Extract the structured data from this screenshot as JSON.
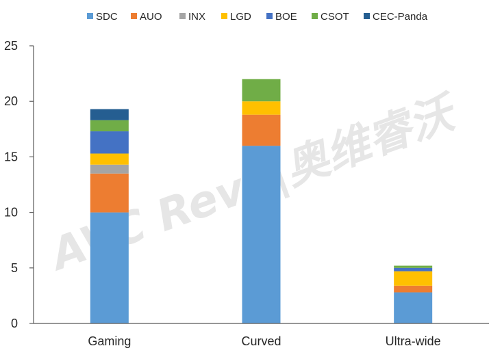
{
  "watermark": "AVC Revo|奥维睿沃",
  "chart_data": {
    "type": "bar",
    "stacked": true,
    "categories": [
      "Gaming",
      "Curved",
      "Ultra-wide"
    ],
    "ylim": [
      0,
      25
    ],
    "yticks": [
      0,
      5,
      10,
      15,
      20,
      25
    ],
    "grid": false,
    "legend_position": "top",
    "series": [
      {
        "name": "SDC",
        "color": "#5b9bd5",
        "values": [
          10.0,
          16.0,
          2.8
        ]
      },
      {
        "name": "AUO",
        "color": "#ed7d31",
        "values": [
          3.5,
          2.8,
          0.6
        ]
      },
      {
        "name": "INX",
        "color": "#a5a5a5",
        "values": [
          0.8,
          0.0,
          0.0
        ]
      },
      {
        "name": "LGD",
        "color": "#ffc000",
        "values": [
          1.0,
          1.2,
          1.3
        ]
      },
      {
        "name": "BOE",
        "color": "#4472c4",
        "values": [
          2.0,
          0.0,
          0.3
        ]
      },
      {
        "name": "CSOT",
        "color": "#70ad47",
        "values": [
          1.0,
          2.0,
          0.2
        ]
      },
      {
        "name": "CEC-Panda",
        "color": "#255e91",
        "values": [
          1.0,
          0.0,
          0.0
        ]
      }
    ]
  }
}
